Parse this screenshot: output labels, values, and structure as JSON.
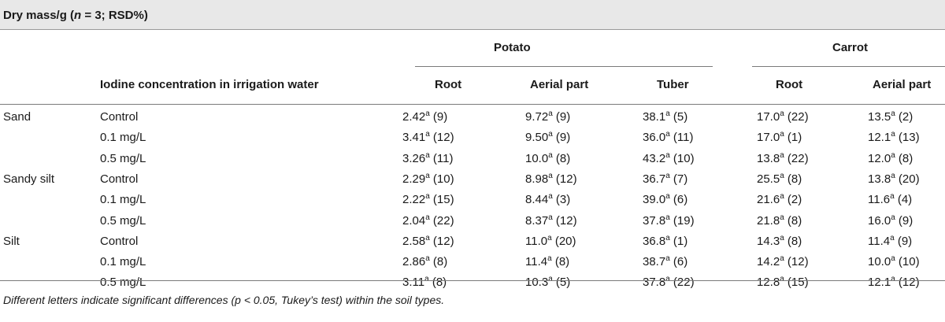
{
  "title": {
    "prefix": "Dry mass/g (",
    "n_var": "n",
    "suffix": " = 3; RSD%)"
  },
  "header": {
    "group_potato": "Potato",
    "group_carrot": "Carrot",
    "col_iodine": "Iodine concentration in irrigation water",
    "col_potato_root": "Root",
    "col_potato_aerial": "Aerial part",
    "col_potato_tuber": "Tuber",
    "col_carrot_root": "Root",
    "col_carrot_aerial": "Aerial part"
  },
  "rows": [
    {
      "soil": "Sand",
      "conc": "Control",
      "vals": [
        [
          "2.42",
          "a",
          " (9)"
        ],
        [
          "9.72",
          "a",
          " (9)"
        ],
        [
          "38.1",
          "a",
          " (5)"
        ],
        [
          "17.0",
          "a",
          " (22)"
        ],
        [
          "13.5",
          "a",
          " (2)"
        ]
      ]
    },
    {
      "soil": "",
      "conc": "0.1 mg/L",
      "vals": [
        [
          "3.41",
          "a",
          " (12)"
        ],
        [
          "9.50",
          "a",
          " (9)"
        ],
        [
          "36.0",
          "a",
          " (11)"
        ],
        [
          "17.0",
          "a",
          " (1)"
        ],
        [
          "12.1",
          "a",
          " (13)"
        ]
      ]
    },
    {
      "soil": "",
      "conc": "0.5 mg/L",
      "vals": [
        [
          "3.26",
          "a",
          " (11)"
        ],
        [
          "10.0",
          "a",
          " (8)"
        ],
        [
          "43.2",
          "a",
          " (10)"
        ],
        [
          "13.8",
          "a",
          " (22)"
        ],
        [
          "12.0",
          "a",
          " (8)"
        ]
      ]
    },
    {
      "soil": "Sandy silt",
      "conc": "Control",
      "vals": [
        [
          "2.29",
          "a",
          " (10)"
        ],
        [
          "8.98",
          "a",
          " (12)"
        ],
        [
          "36.7",
          "a",
          " (7)"
        ],
        [
          "25.5",
          "a",
          " (8)"
        ],
        [
          "13.8",
          "a",
          " (20)"
        ]
      ]
    },
    {
      "soil": "",
      "conc": "0.1 mg/L",
      "vals": [
        [
          "2.22",
          "a",
          " (15)"
        ],
        [
          "8.44",
          "a",
          " (3)"
        ],
        [
          "39.0",
          "a",
          " (6)"
        ],
        [
          "21.6",
          "a",
          " (2)"
        ],
        [
          "11.6",
          "a",
          " (4)"
        ]
      ]
    },
    {
      "soil": "",
      "conc": "0.5 mg/L",
      "vals": [
        [
          "2.04",
          "a",
          " (22)"
        ],
        [
          "8.37",
          "a",
          " (12)"
        ],
        [
          "37.8",
          "a",
          " (19)"
        ],
        [
          "21.8",
          "a",
          " (8)"
        ],
        [
          "16.0",
          "a",
          " (9)"
        ]
      ]
    },
    {
      "soil": "Silt",
      "conc": "Control",
      "vals": [
        [
          "2.58",
          "a",
          " (12)"
        ],
        [
          "11.0",
          "a",
          " (20)"
        ],
        [
          "36.8",
          "a",
          " (1)"
        ],
        [
          "14.3",
          "a",
          " (8)"
        ],
        [
          "11.4",
          "a",
          " (9)"
        ]
      ]
    },
    {
      "soil": "",
      "conc": "0.1 mg/L",
      "vals": [
        [
          "2.86",
          "a",
          " (8)"
        ],
        [
          "11.4",
          "a",
          " (8)"
        ],
        [
          "38.7",
          "a",
          " (6)"
        ],
        [
          "14.2",
          "a",
          " (12)"
        ],
        [
          "10.0",
          "a",
          " (10)"
        ]
      ]
    },
    {
      "soil": "",
      "conc": "0.5 mg/L",
      "vals": [
        [
          "3.11",
          "a",
          " (8)"
        ],
        [
          "10.3",
          "a",
          " (5)"
        ],
        [
          "37.8",
          "a",
          " (22)"
        ],
        [
          "12.8",
          "a",
          " (15)"
        ],
        [
          "12.1",
          "a",
          " (12)"
        ]
      ]
    }
  ],
  "footnote": "Different letters indicate significant differences (p < 0.05, Tukey’s test) within the soil types."
}
